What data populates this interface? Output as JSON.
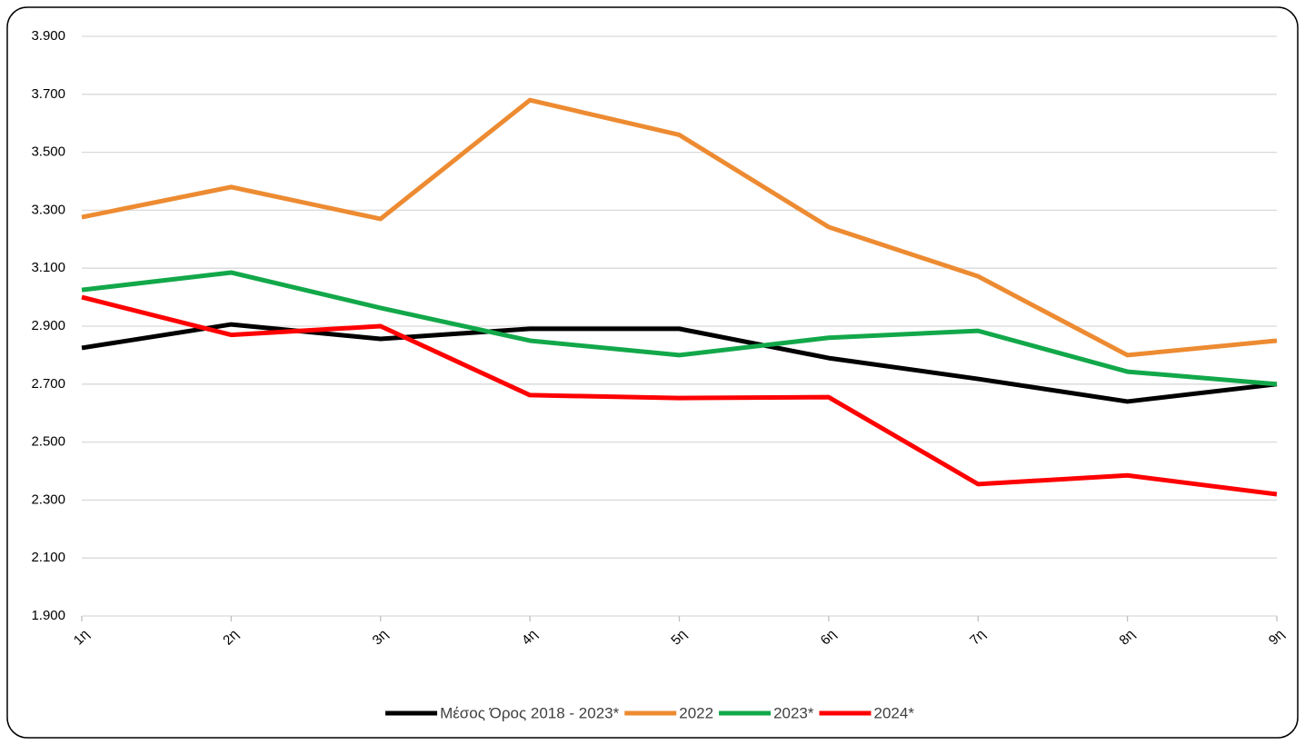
{
  "chart_data": {
    "type": "line",
    "categories": [
      "1η",
      "2η",
      "3η",
      "4η",
      "5η",
      "6η",
      "7η",
      "8η",
      "9η"
    ],
    "series": [
      {
        "name": "Μέσος Όρος 2018 - 2023*",
        "color": "#000000",
        "values": [
          2825,
          2906,
          2856,
          2891,
          2891,
          2790,
          2718,
          2640,
          2700
        ]
      },
      {
        "name": "2022",
        "color": "#ed8b32",
        "values": [
          3276,
          3380,
          3270,
          3680,
          3560,
          3242,
          3072,
          2800,
          2850
        ]
      },
      {
        "name": "2023*",
        "color": "#12a84a",
        "values": [
          3025,
          3085,
          2963,
          2850,
          2800,
          2860,
          2884,
          2743,
          2700
        ]
      },
      {
        "name": "2024*",
        "color": "#ff0000",
        "values": [
          3000,
          2870,
          2900,
          2662,
          2652,
          2655,
          2355,
          2385,
          2320
        ]
      }
    ],
    "ylim": [
      1900,
      3900
    ],
    "yticks": [
      {
        "value": 1900,
        "label": "1.900"
      },
      {
        "value": 2100,
        "label": "2.100"
      },
      {
        "value": 2300,
        "label": "2.300"
      },
      {
        "value": 2500,
        "label": "2.500"
      },
      {
        "value": 2700,
        "label": "2.700"
      },
      {
        "value": 2900,
        "label": "2.900"
      },
      {
        "value": 3100,
        "label": "3.100"
      },
      {
        "value": 3300,
        "label": "3.300"
      },
      {
        "value": 3500,
        "label": "3.500"
      },
      {
        "value": 3700,
        "label": "3.700"
      },
      {
        "value": 3900,
        "label": "3.900"
      }
    ],
    "grid": true,
    "legend": "bottom"
  }
}
